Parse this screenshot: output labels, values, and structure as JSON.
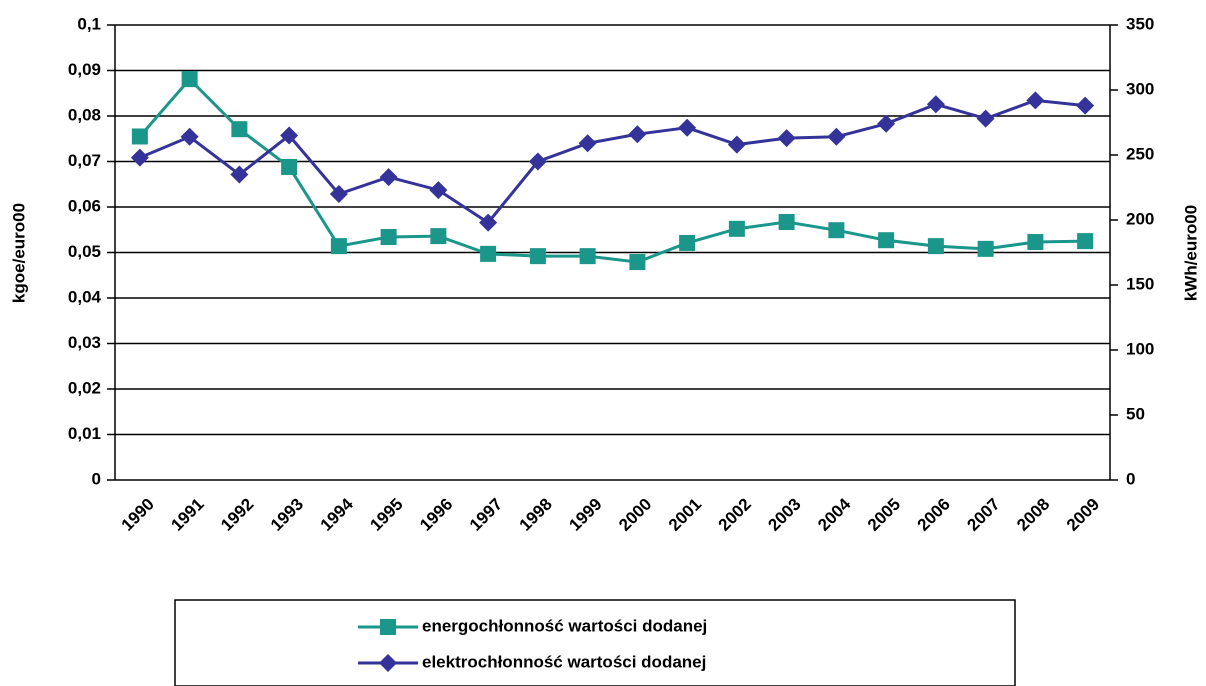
{
  "chart_data": {
    "type": "line",
    "categories": [
      "1990",
      "1991",
      "1992",
      "1993",
      "1994",
      "1995",
      "1996",
      "1997",
      "1998",
      "1999",
      "2000",
      "2001",
      "2002",
      "2003",
      "2004",
      "2005",
      "2006",
      "2007",
      "2008",
      "2009"
    ],
    "y_label": "kgoe/euro00",
    "y2_label": "kWh/euro00",
    "ylim": [
      0,
      0.1
    ],
    "yticks": [
      0,
      {
        "value": 0.01,
        "label": "0,01"
      },
      {
        "value": 0.02,
        "label": "0,02"
      },
      {
        "value": 0.03,
        "label": "0,03"
      },
      {
        "value": 0.04,
        "label": "0,04"
      },
      {
        "value": 0.05,
        "label": "0,05"
      },
      {
        "value": 0.06,
        "label": "0,06"
      },
      {
        "value": 0.07,
        "label": "0,07"
      },
      {
        "value": 0.08,
        "label": "0,08"
      },
      {
        "value": 0.09,
        "label": "0,09"
      },
      {
        "value": 0.1,
        "label": "0,1"
      }
    ],
    "y2lim": [
      0,
      350
    ],
    "y2ticks": [
      0,
      50,
      100,
      150,
      200,
      250,
      300,
      350
    ],
    "grid": true,
    "series": [
      {
        "name": "energochłonność wartości dodanej",
        "color": "#1a968a",
        "marker": "square",
        "values": [
          0.0755,
          0.0881,
          0.0771,
          0.0688,
          0.0514,
          0.0534,
          0.0536,
          0.0497,
          0.0492,
          0.0492,
          0.0479,
          0.0521,
          0.0552,
          0.0567,
          0.0549,
          0.0527,
          0.0514,
          0.0508,
          0.0523,
          0.0525
        ]
      },
      {
        "name": "elektrochłonność wartości dodanej",
        "color": "#33339a",
        "marker": "diamond",
        "axis": "y2",
        "values": [
          248,
          264,
          235,
          265,
          220,
          233,
          223,
          198,
          245,
          259,
          266,
          271,
          258,
          263,
          264,
          274,
          289,
          278,
          292,
          288
        ]
      }
    ]
  }
}
